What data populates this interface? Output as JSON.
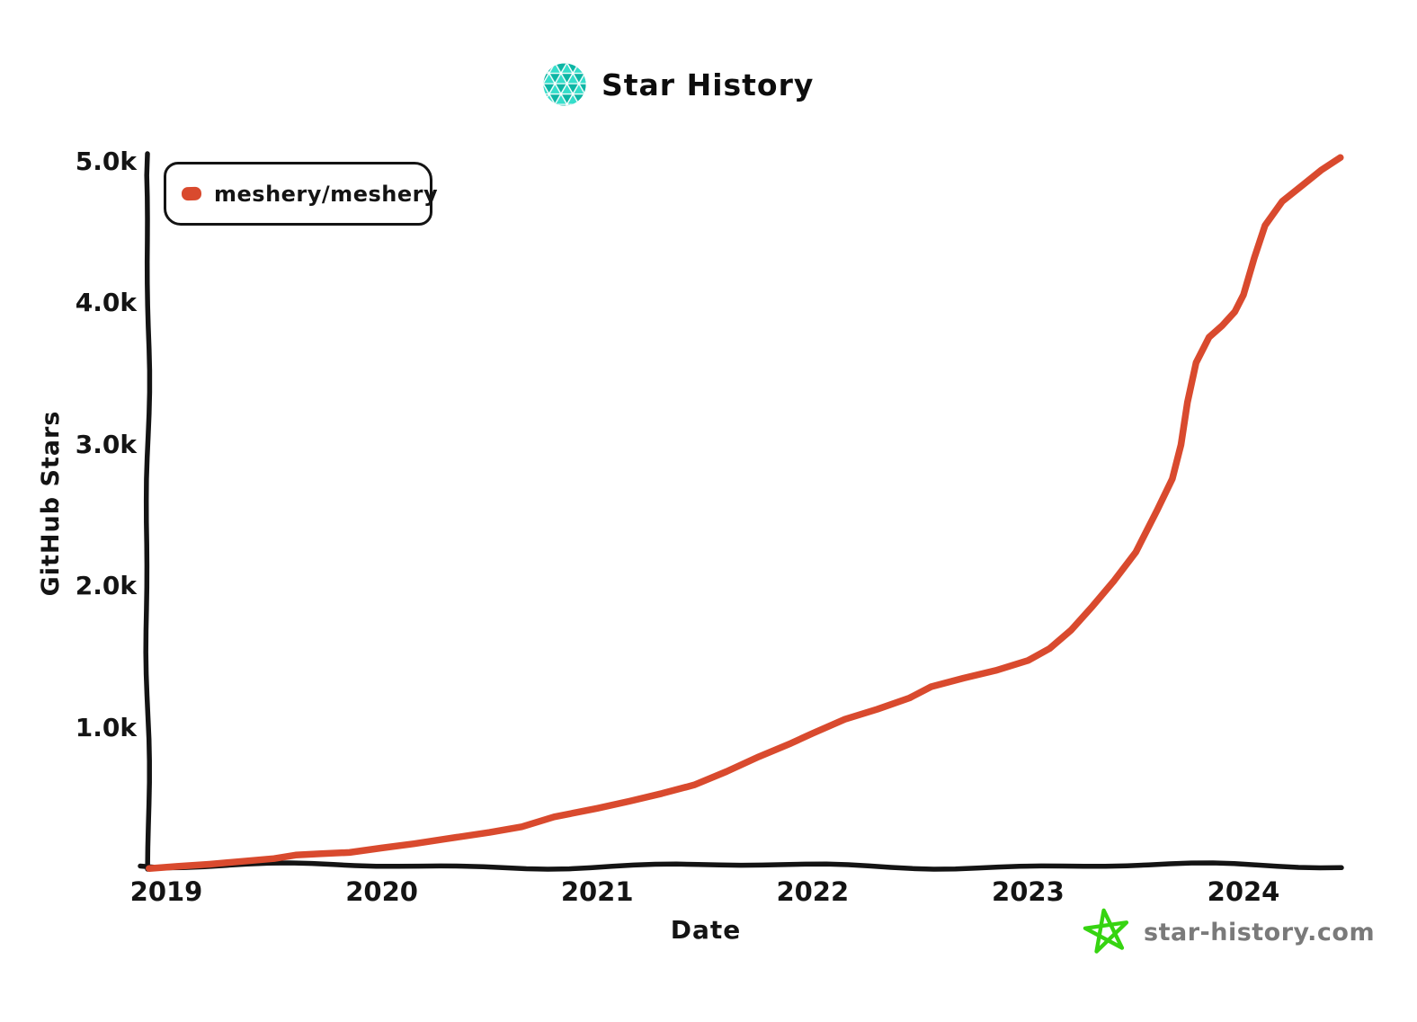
{
  "title": "Star History",
  "branding": {
    "site_label": "star-history.com"
  },
  "legend": {
    "items": [
      {
        "label": "meshery/meshery",
        "color": "#d94a2e"
      }
    ]
  },
  "colors": {
    "axis": "#141414",
    "text": "#111111",
    "muted_text": "#7a7a7a",
    "logo_teal_dark": "#0db5a4",
    "logo_teal_light": "#35decb",
    "footer_star_green": "#36d411",
    "background": "#ffffff"
  },
  "chart_data": {
    "type": "line",
    "title": "Star History",
    "xlabel": "Date",
    "ylabel": "GitHub Stars",
    "legend_position": "top-left",
    "grid": false,
    "x_ticks": [
      2019,
      2020,
      2021,
      2022,
      2023,
      2024
    ],
    "x_tick_labels": [
      "2019",
      "2020",
      "2021",
      "2022",
      "2023",
      "2024"
    ],
    "y_ticks": [
      1000,
      2000,
      3000,
      4000,
      5000
    ],
    "y_tick_labels": [
      "1.0k",
      "2.0k",
      "3.0k",
      "4.0k",
      "5.0k"
    ],
    "xlim": [
      2018.9,
      2024.55
    ],
    "ylim": [
      0,
      5150
    ],
    "series": [
      {
        "name": "meshery/meshery",
        "color": "#d94a2e",
        "points": [
          [
            2018.92,
            5
          ],
          [
            2019.05,
            20
          ],
          [
            2019.2,
            35
          ],
          [
            2019.35,
            55
          ],
          [
            2019.5,
            75
          ],
          [
            2019.6,
            100
          ],
          [
            2019.72,
            110
          ],
          [
            2019.85,
            118
          ],
          [
            2020.0,
            150
          ],
          [
            2020.15,
            180
          ],
          [
            2020.3,
            215
          ],
          [
            2020.5,
            260
          ],
          [
            2020.65,
            300
          ],
          [
            2020.8,
            370
          ],
          [
            2021.0,
            430
          ],
          [
            2021.15,
            480
          ],
          [
            2021.3,
            535
          ],
          [
            2021.45,
            595
          ],
          [
            2021.6,
            690
          ],
          [
            2021.75,
            795
          ],
          [
            2021.9,
            890
          ],
          [
            2022.0,
            960
          ],
          [
            2022.15,
            1060
          ],
          [
            2022.3,
            1130
          ],
          [
            2022.45,
            1210
          ],
          [
            2022.55,
            1290
          ],
          [
            2022.7,
            1350
          ],
          [
            2022.85,
            1405
          ],
          [
            2023.0,
            1475
          ],
          [
            2023.1,
            1560
          ],
          [
            2023.2,
            1690
          ],
          [
            2023.3,
            1860
          ],
          [
            2023.4,
            2040
          ],
          [
            2023.5,
            2240
          ],
          [
            2023.6,
            2540
          ],
          [
            2023.67,
            2760
          ],
          [
            2023.71,
            3000
          ],
          [
            2023.74,
            3300
          ],
          [
            2023.78,
            3580
          ],
          [
            2023.84,
            3760
          ],
          [
            2023.9,
            3840
          ],
          [
            2023.96,
            3940
          ],
          [
            2024.0,
            4060
          ],
          [
            2024.05,
            4320
          ],
          [
            2024.1,
            4550
          ],
          [
            2024.18,
            4720
          ],
          [
            2024.27,
            4830
          ],
          [
            2024.36,
            4940
          ],
          [
            2024.45,
            5030
          ]
        ]
      }
    ]
  }
}
